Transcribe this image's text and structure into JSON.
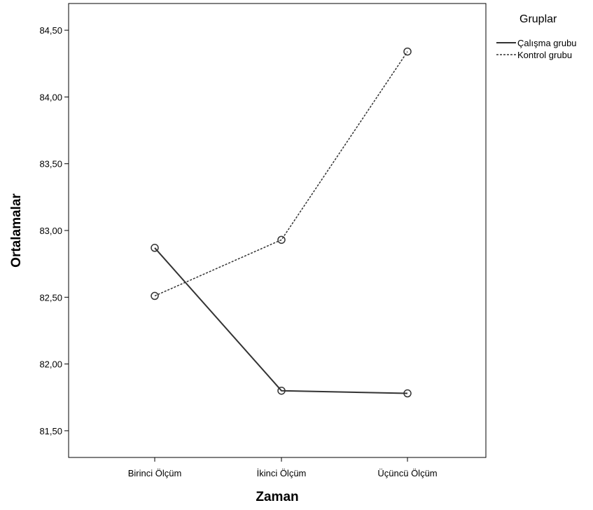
{
  "chart_data": {
    "type": "line",
    "title": "",
    "xlabel": "Zaman",
    "ylabel": "Ortalamalar",
    "categories": [
      "Birinci Ölçüm",
      "İkinci Ölçüm",
      "Üçüncü Ölçüm"
    ],
    "ylim": [
      81.3,
      84.7
    ],
    "yticks": [
      81.5,
      82.0,
      82.5,
      83.0,
      83.5,
      84.0,
      84.5
    ],
    "ytick_labels": [
      "81,50",
      "82,00",
      "82,50",
      "83,00",
      "83,50",
      "84,00",
      "84,50"
    ],
    "grid": false,
    "legend": {
      "title": "Gruplar",
      "placement": "outside-right-top"
    },
    "series": [
      {
        "name": "Çalışma grubu",
        "values": [
          82.87,
          81.8,
          81.78
        ],
        "line_style": "solid",
        "color": "#333333"
      },
      {
        "name": "Kontrol grubu",
        "values": [
          82.51,
          82.93,
          84.34
        ],
        "line_style": "dashed",
        "color": "#333333"
      }
    ]
  }
}
